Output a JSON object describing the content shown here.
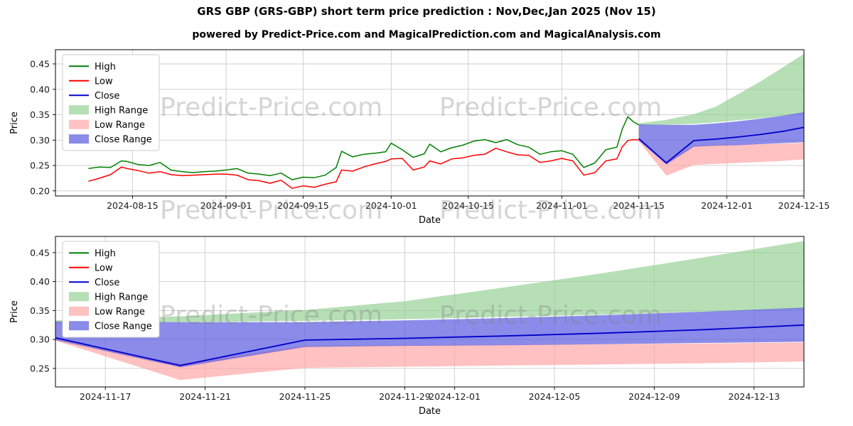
{
  "header": {
    "title": "GRS GBP (GRS-GBP) short term price prediction : Nov,Dec,Jan 2025 (Nov 15)",
    "subtitle": "powered by Predict-Price.com and MagicalPrediction.com and MagicalAnalysis.com"
  },
  "watermark": "Predict-Price.com",
  "colors": {
    "high_line": "#008000",
    "low_line": "#ff0000",
    "close_line": "#0000cc",
    "high_range_fill": "#8fce8f",
    "low_range_fill": "#ff9f9f",
    "close_range_fill": "#5a5ae0",
    "grid": "#cccccc"
  },
  "chart_data": [
    {
      "type": "line",
      "xlabel": "Date",
      "ylabel": "Price",
      "xlim": [
        "2024-08-01",
        "2024-12-15"
      ],
      "ylim": [
        0.19,
        0.478
      ],
      "yticks": [
        0.2,
        0.25,
        0.3,
        0.35,
        0.4,
        0.45
      ],
      "xticks": [
        "2024-08-15",
        "2024-09-01",
        "2024-09-15",
        "2024-10-01",
        "2024-10-15",
        "2024-11-01",
        "2024-11-15",
        "2024-12-01",
        "2024-12-15"
      ],
      "grid": true,
      "legend_position": "upper-left",
      "legend": [
        {
          "label": "High",
          "swatch": "line",
          "color": "#008000"
        },
        {
          "label": "Low",
          "swatch": "line",
          "color": "#ff0000"
        },
        {
          "label": "Close",
          "swatch": "line",
          "color": "#0000cc"
        },
        {
          "label": "High Range",
          "swatch": "patch",
          "color": "#8fce8f",
          "opacity": 0.65
        },
        {
          "label": "Low Range",
          "swatch": "patch",
          "color": "#ff9f9f",
          "opacity": 0.65
        },
        {
          "label": "Close Range",
          "swatch": "patch",
          "color": "#5a5ae0",
          "opacity": 0.7
        }
      ],
      "bands": [
        {
          "name": "High Range",
          "color": "#8fce8f",
          "opacity": 0.65,
          "x": [
            "2024-11-15",
            "2024-11-20",
            "2024-11-25",
            "2024-11-29",
            "2024-12-03",
            "2024-12-07",
            "2024-12-11",
            "2024-12-15"
          ],
          "upper": [
            0.333,
            0.34,
            0.351,
            0.366,
            0.39,
            0.415,
            0.442,
            0.47
          ],
          "lower": [
            0.329,
            0.33,
            0.332,
            0.335,
            0.339,
            0.343,
            0.348,
            0.353
          ]
        },
        {
          "name": "Low Range",
          "color": "#ff9f9f",
          "opacity": 0.65,
          "x": [
            "2024-11-15",
            "2024-11-20",
            "2024-11-25",
            "2024-11-29",
            "2024-12-03",
            "2024-12-07",
            "2024-12-11",
            "2024-12-15"
          ],
          "upper": [
            0.301,
            0.258,
            0.289,
            0.29,
            0.291,
            0.292,
            0.293,
            0.295
          ],
          "lower": [
            0.298,
            0.23,
            0.251,
            0.253,
            0.255,
            0.257,
            0.259,
            0.262
          ]
        },
        {
          "name": "Close Range",
          "color": "#5a5ae0",
          "opacity": 0.7,
          "x": [
            "2024-11-15",
            "2024-11-20",
            "2024-11-25",
            "2024-11-29",
            "2024-12-03",
            "2024-12-07",
            "2024-12-11",
            "2024-12-15"
          ],
          "upper": [
            0.331,
            0.33,
            0.33,
            0.333,
            0.337,
            0.342,
            0.348,
            0.355
          ],
          "lower": [
            0.299,
            0.252,
            0.287,
            0.289,
            0.29,
            0.292,
            0.294,
            0.296
          ]
        }
      ],
      "series": [
        {
          "name": "High",
          "color": "#008000",
          "width": 1.5,
          "x": [
            "2024-08-07",
            "2024-08-09",
            "2024-08-11",
            "2024-08-13",
            "2024-08-14",
            "2024-08-16",
            "2024-08-18",
            "2024-08-20",
            "2024-08-22",
            "2024-08-24",
            "2024-08-26",
            "2024-08-28",
            "2024-08-30",
            "2024-09-01",
            "2024-09-03",
            "2024-09-05",
            "2024-09-07",
            "2024-09-09",
            "2024-09-11",
            "2024-09-13",
            "2024-09-15",
            "2024-09-17",
            "2024-09-19",
            "2024-09-21",
            "2024-09-22",
            "2024-09-24",
            "2024-09-26",
            "2024-09-28",
            "2024-09-30",
            "2024-10-01",
            "2024-10-03",
            "2024-10-05",
            "2024-10-07",
            "2024-10-08",
            "2024-10-10",
            "2024-10-12",
            "2024-10-14",
            "2024-10-16",
            "2024-10-18",
            "2024-10-20",
            "2024-10-22",
            "2024-10-24",
            "2024-10-26",
            "2024-10-28",
            "2024-10-30",
            "2024-11-01",
            "2024-11-03",
            "2024-11-05",
            "2024-11-07",
            "2024-11-09",
            "2024-11-11",
            "2024-11-12",
            "2024-11-13",
            "2024-11-14",
            "2024-11-15"
          ],
          "y": [
            0.244,
            0.247,
            0.246,
            0.259,
            0.258,
            0.252,
            0.25,
            0.256,
            0.241,
            0.238,
            0.236,
            0.238,
            0.239,
            0.241,
            0.244,
            0.235,
            0.233,
            0.23,
            0.235,
            0.222,
            0.227,
            0.226,
            0.231,
            0.246,
            0.278,
            0.267,
            0.272,
            0.274,
            0.277,
            0.294,
            0.281,
            0.266,
            0.273,
            0.292,
            0.277,
            0.285,
            0.29,
            0.298,
            0.301,
            0.295,
            0.301,
            0.291,
            0.286,
            0.272,
            0.277,
            0.279,
            0.272,
            0.246,
            0.255,
            0.281,
            0.286,
            0.322,
            0.346,
            0.336,
            0.33
          ]
        },
        {
          "name": "Low",
          "color": "#ff0000",
          "width": 1.5,
          "x": [
            "2024-08-07",
            "2024-08-09",
            "2024-08-11",
            "2024-08-13",
            "2024-08-14",
            "2024-08-16",
            "2024-08-18",
            "2024-08-20",
            "2024-08-22",
            "2024-08-24",
            "2024-08-26",
            "2024-08-28",
            "2024-08-30",
            "2024-09-01",
            "2024-09-03",
            "2024-09-05",
            "2024-09-07",
            "2024-09-09",
            "2024-09-11",
            "2024-09-13",
            "2024-09-15",
            "2024-09-17",
            "2024-09-19",
            "2024-09-21",
            "2024-09-22",
            "2024-09-24",
            "2024-09-26",
            "2024-09-28",
            "2024-09-30",
            "2024-10-01",
            "2024-10-03",
            "2024-10-05",
            "2024-10-07",
            "2024-10-08",
            "2024-10-10",
            "2024-10-12",
            "2024-10-14",
            "2024-10-16",
            "2024-10-18",
            "2024-10-20",
            "2024-10-22",
            "2024-10-24",
            "2024-10-26",
            "2024-10-28",
            "2024-10-30",
            "2024-11-01",
            "2024-11-03",
            "2024-11-05",
            "2024-11-07",
            "2024-11-09",
            "2024-11-11",
            "2024-11-12",
            "2024-11-13",
            "2024-11-14",
            "2024-11-15"
          ],
          "y": [
            0.219,
            0.225,
            0.232,
            0.247,
            0.244,
            0.24,
            0.235,
            0.238,
            0.232,
            0.23,
            0.231,
            0.232,
            0.233,
            0.233,
            0.231,
            0.222,
            0.22,
            0.215,
            0.221,
            0.205,
            0.21,
            0.207,
            0.213,
            0.218,
            0.241,
            0.239,
            0.247,
            0.253,
            0.258,
            0.263,
            0.264,
            0.241,
            0.247,
            0.259,
            0.253,
            0.263,
            0.265,
            0.27,
            0.272,
            0.284,
            0.277,
            0.271,
            0.27,
            0.256,
            0.259,
            0.264,
            0.259,
            0.231,
            0.236,
            0.259,
            0.263,
            0.287,
            0.299,
            0.301,
            0.3
          ]
        },
        {
          "name": "Close",
          "color": "#0000cc",
          "width": 1.8,
          "x": [
            "2024-11-15",
            "2024-11-20",
            "2024-11-25",
            "2024-11-29",
            "2024-12-03",
            "2024-12-07",
            "2024-12-11",
            "2024-12-15"
          ],
          "y": [
            0.303,
            0.255,
            0.299,
            0.302,
            0.306,
            0.311,
            0.317,
            0.325
          ]
        }
      ]
    },
    {
      "type": "line",
      "xlabel": "Date",
      "ylabel": "Price",
      "xlim": [
        "2024-11-15",
        "2024-12-15"
      ],
      "ylim": [
        0.218,
        0.478
      ],
      "yticks": [
        0.25,
        0.3,
        0.35,
        0.4,
        0.45
      ],
      "xticks": [
        "2024-11-17",
        "2024-11-21",
        "2024-11-25",
        "2024-11-29",
        "2024-12-01",
        "2024-12-05",
        "2024-12-09",
        "2024-12-13"
      ],
      "grid": true,
      "legend_position": "upper-left",
      "legend": [
        {
          "label": "High",
          "swatch": "line",
          "color": "#008000"
        },
        {
          "label": "Low",
          "swatch": "line",
          "color": "#ff0000"
        },
        {
          "label": "Close",
          "swatch": "line",
          "color": "#0000cc"
        },
        {
          "label": "High Range",
          "swatch": "patch",
          "color": "#8fce8f",
          "opacity": 0.65
        },
        {
          "label": "Low Range",
          "swatch": "patch",
          "color": "#ff9f9f",
          "opacity": 0.65
        },
        {
          "label": "Close Range",
          "swatch": "patch",
          "color": "#5a5ae0",
          "opacity": 0.7
        }
      ],
      "bands": [
        {
          "name": "High Range",
          "color": "#8fce8f",
          "opacity": 0.65,
          "x": [
            "2024-11-15",
            "2024-11-20",
            "2024-11-25",
            "2024-11-29",
            "2024-12-03",
            "2024-12-07",
            "2024-12-11",
            "2024-12-15"
          ],
          "upper": [
            0.333,
            0.34,
            0.351,
            0.366,
            0.39,
            0.415,
            0.442,
            0.47
          ],
          "lower": [
            0.329,
            0.33,
            0.332,
            0.335,
            0.339,
            0.343,
            0.348,
            0.353
          ]
        },
        {
          "name": "Low Range",
          "color": "#ff9f9f",
          "opacity": 0.65,
          "x": [
            "2024-11-15",
            "2024-11-20",
            "2024-11-25",
            "2024-11-29",
            "2024-12-03",
            "2024-12-07",
            "2024-12-11",
            "2024-12-15"
          ],
          "upper": [
            0.301,
            0.258,
            0.289,
            0.29,
            0.291,
            0.292,
            0.293,
            0.295
          ],
          "lower": [
            0.298,
            0.23,
            0.251,
            0.253,
            0.255,
            0.257,
            0.259,
            0.262
          ]
        },
        {
          "name": "Close Range",
          "color": "#5a5ae0",
          "opacity": 0.7,
          "x": [
            "2024-11-15",
            "2024-11-20",
            "2024-11-25",
            "2024-11-29",
            "2024-12-03",
            "2024-12-07",
            "2024-12-11",
            "2024-12-15"
          ],
          "upper": [
            0.331,
            0.33,
            0.33,
            0.333,
            0.337,
            0.342,
            0.348,
            0.355
          ],
          "lower": [
            0.299,
            0.252,
            0.287,
            0.289,
            0.29,
            0.292,
            0.294,
            0.296
          ]
        }
      ],
      "series": [
        {
          "name": "Close",
          "color": "#0000cc",
          "width": 1.8,
          "x": [
            "2024-11-15",
            "2024-11-20",
            "2024-11-25",
            "2024-11-29",
            "2024-12-03",
            "2024-12-07",
            "2024-12-11",
            "2024-12-15"
          ],
          "y": [
            0.303,
            0.255,
            0.299,
            0.302,
            0.306,
            0.311,
            0.317,
            0.325
          ]
        }
      ]
    }
  ]
}
